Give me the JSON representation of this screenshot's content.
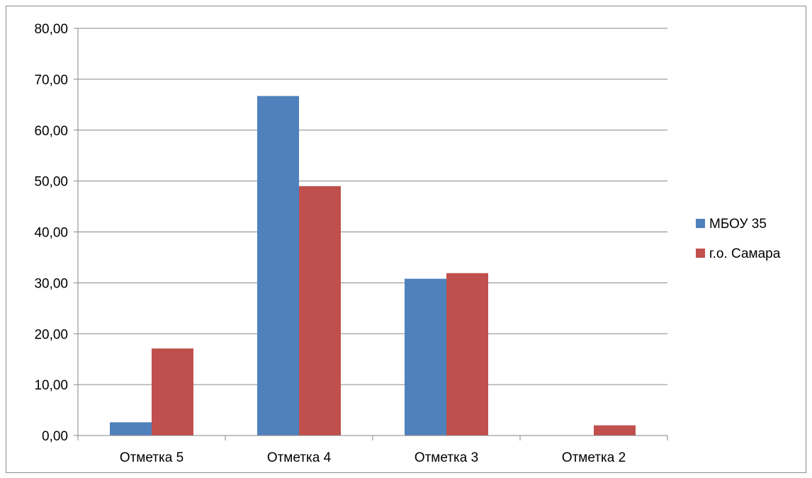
{
  "chart_data": {
    "type": "bar",
    "categories": [
      "Отметка 5",
      "Отметка 4",
      "Отметка 3",
      "Отметка 2"
    ],
    "series": [
      {
        "name": "МБОУ 35",
        "color": "#4F81BD",
        "values": [
          2.6,
          66.7,
          30.8,
          0.0
        ]
      },
      {
        "name": "г.о. Самара",
        "color": "#C0504D",
        "values": [
          17.1,
          49.0,
          31.9,
          2.0
        ]
      }
    ],
    "title": "",
    "xlabel": "",
    "ylabel": "",
    "ylim": [
      0,
      80
    ],
    "yticks": [
      0,
      10,
      20,
      30,
      40,
      50,
      60,
      70,
      80
    ],
    "ytick_labels": [
      "0,00",
      "10,00",
      "20,00",
      "30,00",
      "40,00",
      "50,00",
      "60,00",
      "70,00",
      "80,00"
    ],
    "grid": true,
    "legend_position": "right",
    "gridline_color": "#868686"
  }
}
